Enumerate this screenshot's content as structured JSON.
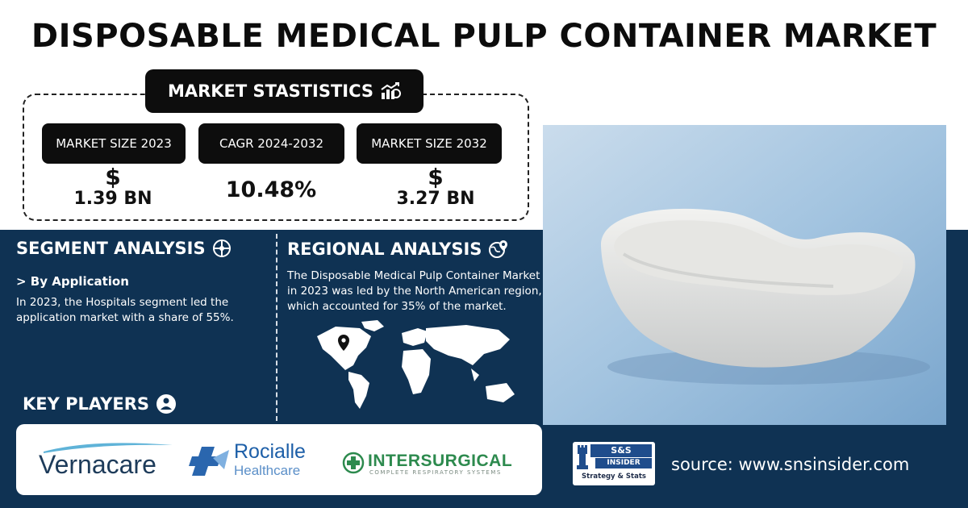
{
  "title": "DISPOSABLE MEDICAL PULP CONTAINER MARKET",
  "stats": {
    "header": "MARKET STASTISTICS",
    "items": [
      {
        "label": "MARKET SIZE 2023",
        "symbol": "$",
        "value": "1.39 BN"
      },
      {
        "label": "CAGR 2024-2032",
        "symbol": "",
        "value": "10.48%"
      },
      {
        "label": "MARKET SIZE 2032",
        "symbol": "$",
        "value": "3.27 BN"
      }
    ]
  },
  "segment": {
    "title": "SEGMENT ANALYSIS",
    "subhead": "> By Application",
    "text": "In 2023, the Hospitals segment led the application market with a share of 55%."
  },
  "regional": {
    "title": "REGIONAL ANALYSIS",
    "text": "The Disposable Medical Pulp Container Market in 2023 was led by the North American region, which accounted for 35% of the market."
  },
  "key_players": {
    "title": "KEY PLAYERS",
    "players": [
      {
        "name": "Vernacare"
      },
      {
        "name": "Rocialle",
        "sub": "Healthcare"
      },
      {
        "name": "INTERSURGICAL",
        "sub": "COMPLETE RESPIRATORY SYSTEMS"
      }
    ]
  },
  "brand": {
    "logo_top": "S&S",
    "logo_mid": "INSIDER",
    "logo_tag": "Strategy & Stats",
    "source": "source: www.snsinsider.com"
  },
  "colors": {
    "band": "#0f3253",
    "dark_box": "#0d0d0d",
    "photo_bg": "#9ec0dd"
  }
}
